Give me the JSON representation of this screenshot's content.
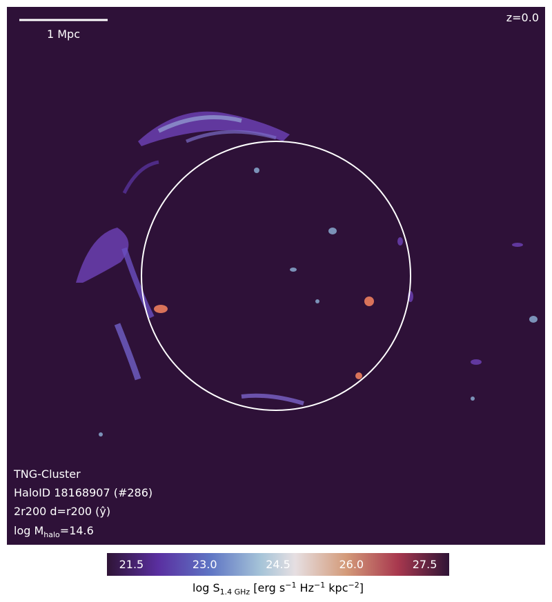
{
  "scale_bar": {
    "label": "1 Mpc"
  },
  "redshift": "z=0.0",
  "info": {
    "line1": "TNG-Cluster",
    "line2": "HaloID 18168907 (#286)",
    "line3": "2r200 d=r200 (ŷ)",
    "line4": {
      "prefix": "log M",
      "sub": "halo",
      "suffix": "=14.6"
    }
  },
  "colorbar": {
    "range": [
      21,
      28
    ],
    "ticks": [
      21.5,
      {
        "value": 23,
        "label": "23.0"
      },
      24.5,
      {
        "value": 26,
        "label": "26.0"
      },
      27.5
    ],
    "label": {
      "prefix": "log S",
      "sub": "1.4 GHz",
      "part1": " [erg s",
      "sup1": "−1",
      "part2": " Hz",
      "sup2": "−1",
      "part3": " kpc",
      "sup3": "−2",
      "part4": "]"
    }
  }
}
